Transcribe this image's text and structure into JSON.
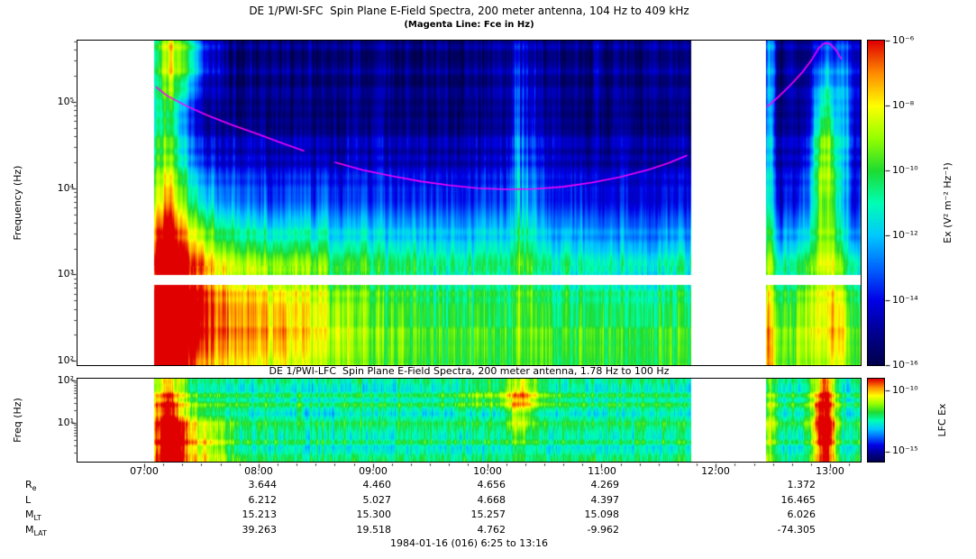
{
  "chart_data": [
    {
      "type": "heatmap",
      "instrument": "DE 1/PWI-SFC",
      "title": "DE 1/PWI-SFC  Spin Plane E-Field Spectra, 200 meter antenna, 104 Hz to 409 kHz",
      "subtitle": "(Magenta Line: Fce in Hz)",
      "ylabel": "Frequency (Hz)",
      "y_scale": "log",
      "y_range_hz": [
        104,
        409000
      ],
      "y_ticks": [
        "10⁵",
        "10⁴",
        "10³",
        "10²"
      ],
      "x_start": "06:25",
      "x_end": "13:16",
      "x_ticks": [
        "07:00",
        "08:00",
        "09:00",
        "10:00",
        "11:00",
        "12:00",
        "13:00"
      ],
      "data_start": "07:05",
      "data_gap": [
        "11:47",
        "12:26"
      ],
      "white_band_log_hz": [
        2.88,
        3.0
      ],
      "colorbar": {
        "label": "Ex (V² m⁻² Hz⁻¹)",
        "scale": "log",
        "tick_labels": [
          "10⁻⁶",
          "10⁻⁸",
          "10⁻¹⁰",
          "10⁻¹²",
          "10⁻¹⁴",
          "10⁻¹⁶"
        ]
      },
      "colormap": [
        "#00004B",
        "#000090",
        "#0000E6",
        "#0064FF",
        "#00C8FF",
        "#00FFB4",
        "#1EDC32",
        "#96FF00",
        "#FFFF00",
        "#FF8C00",
        "#E10000"
      ],
      "fce_line": {
        "label": "Fce",
        "color": "#FF00FF",
        "segments": [
          [
            [
              "07:06",
              150000
            ],
            [
              "07:12",
              118000
            ],
            [
              "07:22",
              90000
            ],
            [
              "07:33",
              70000
            ],
            [
              "07:45",
              55000
            ],
            [
              "08:00",
              42000
            ],
            [
              "08:12",
              33500
            ],
            [
              "08:24",
              27000
            ]
          ],
          [
            [
              "08:40",
              20000
            ],
            [
              "08:55",
              16200
            ],
            [
              "09:10",
              13800
            ],
            [
              "09:25",
              12000
            ],
            [
              "09:40",
              10800
            ],
            [
              "09:55",
              10000
            ],
            [
              "10:10",
              9700
            ],
            [
              "10:25",
              9800
            ],
            [
              "10:40",
              10400
            ],
            [
              "10:55",
              11600
            ],
            [
              "11:10",
              13500
            ],
            [
              "11:25",
              16500
            ],
            [
              "11:35",
              19500
            ],
            [
              "11:45",
              24000
            ]
          ],
          [
            [
              "12:27",
              88000
            ],
            [
              "12:33",
              115000
            ],
            [
              "12:39",
              155000
            ],
            [
              "12:45",
              215000
            ],
            [
              "12:50",
              300000
            ],
            [
              "12:54",
              420000
            ],
            [
              "12:57",
              480000
            ],
            [
              "13:00",
              470000
            ],
            [
              "13:03",
              400000
            ],
            [
              "13:06",
              310000
            ]
          ]
        ]
      },
      "texture": {
        "floor": 0.08,
        "band_level": 0.55,
        "band_top_lf": 3.62,
        "band_sharp": 2.6,
        "streak_amp": 0.2,
        "hband_amp": 0.1,
        "grain_amp": 0.1
      },
      "features": [
        {
          "time": "07:11",
          "sig_min": 10,
          "lf": 3.5,
          "sig_lf": 9,
          "amp": 0.5,
          "desc": "intense broadband burst at data start"
        },
        {
          "time": "07:24",
          "sig_min": 16,
          "lf": 2.9,
          "sig_lf": 1.4,
          "amp": 0.3,
          "desc": "low-frequency enhancement"
        },
        {
          "time": "08:00",
          "sig_min": 45,
          "lf": 2.55,
          "sig_lf": 0.85,
          "amp": 0.27,
          "desc": "yellow-orange band below 1 kHz until ~08:40"
        },
        {
          "time": "07:21",
          "sig_min": 13,
          "lf": 5.55,
          "sig_lf": 0.45,
          "amp": 0.35,
          "desc": "high-frequency emission top-left"
        },
        {
          "time": "10:18",
          "sig_min": 9,
          "lf": 4.4,
          "sig_lf": 1.5,
          "amp": 0.32,
          "streaky": true,
          "desc": "vertical burst streaks reaching high frequency"
        },
        {
          "time": "12:57",
          "sig_min": 8,
          "lf": 4.35,
          "sig_lf": 1.15,
          "amp": 0.6,
          "desc": "large emission blob near perigee"
        },
        {
          "time": "12:58",
          "sig_min": 14,
          "lf": 2.6,
          "sig_lf": 0.9,
          "amp": 0.25,
          "desc": "low-frequency enhancement right side"
        },
        {
          "time": "12:28",
          "sig_min": 2.5,
          "lf": 3.5,
          "sig_lf": 9,
          "amp": 0.3,
          "desc": "full-height column after data gap"
        },
        {
          "time": "13:09",
          "sig_min": 6,
          "lf": 4.9,
          "sig_lf": 1.1,
          "amp": 0.22,
          "desc": "right-edge high-frequency streaks"
        }
      ]
    },
    {
      "type": "heatmap",
      "instrument": "DE 1/PWI-LFC",
      "title": "DE 1/PWI-LFC  Spin Plane E-Field Spectra, 200 meter antenna, 1.78 Hz to 100 Hz",
      "ylabel": "Freq (Hz)",
      "y_scale": "log",
      "y_range_hz": [
        1.78,
        100
      ],
      "y_ticks": [
        "10²",
        "10¹"
      ],
      "x_start": "06:25",
      "x_end": "13:16",
      "x_ticks": [
        "07:00",
        "08:00",
        "09:00",
        "10:00",
        "11:00",
        "12:00",
        "13:00"
      ],
      "data_start": "07:05",
      "data_gap": [
        "11:47",
        "12:26"
      ],
      "colorbar": {
        "label": "LFC Ex",
        "scale": "log",
        "tick_labels": [
          "10⁻¹⁰",
          "10⁻¹⁵"
        ]
      },
      "texture": {
        "floor": 0.52,
        "streak_amp": 0.15,
        "hband_amp": 0.18
      },
      "features": [
        {
          "time": "07:12",
          "sig_min": 9,
          "lf": 0.7,
          "sig_lf": 1.8,
          "amp": 0.55,
          "desc": "intense red column at data start"
        },
        {
          "time": "07:26",
          "sig_min": 18,
          "lf": 0.45,
          "sig_lf": 0.8,
          "amp": 0.3,
          "desc": "lingering low-frequency enhancement"
        },
        {
          "time": "10:18",
          "sig_min": 8,
          "lf": 1.6,
          "sig_lf": 1.0,
          "amp": 0.25,
          "desc": "burst streaks"
        },
        {
          "time": "10:10",
          "sig_min": 28,
          "lf": 1.65,
          "sig_lf": 0.3,
          "amp": 0.15,
          "desc": "bright band near 30-60 Hz"
        },
        {
          "time": "12:57",
          "sig_min": 6,
          "lf": 1.0,
          "sig_lf": 1.6,
          "amp": 0.62,
          "desc": "intense red blob near perigee"
        },
        {
          "time": "12:28",
          "sig_min": 3,
          "lf": 1.0,
          "sig_lf": 2.0,
          "amp": 0.2,
          "desc": "column after data gap"
        }
      ]
    }
  ],
  "ephemeris": {
    "rows": [
      {
        "label": "R",
        "sub": "e",
        "values": [
          "3.644",
          "4.460",
          "4.656",
          "4.269",
          "1.372"
        ]
      },
      {
        "label": "L",
        "sub": "",
        "values": [
          "6.212",
          "5.027",
          "4.668",
          "4.397",
          "16.465"
        ]
      },
      {
        "label": "M",
        "sub": "LT",
        "values": [
          "15.213",
          "15.300",
          "15.257",
          "15.098",
          "6.026"
        ]
      },
      {
        "label": "M",
        "sub": "LAT",
        "values": [
          "39.263",
          "19.518",
          "4.762",
          "-9.962",
          "-74.305"
        ]
      }
    ],
    "column_times": [
      "08:00",
      "09:00",
      "10:00",
      "11:00",
      "13:00"
    ]
  },
  "footer": {
    "date_range": "1984-01-16 (016) 6:25 to 13:16"
  }
}
